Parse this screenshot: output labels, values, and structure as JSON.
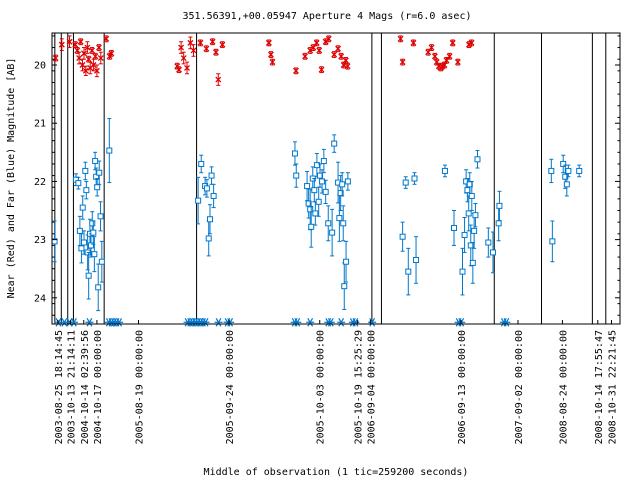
{
  "chart_data": {
    "type": "scatter",
    "title": "351.56391,+00.05947   Aperture 4 Mags (r=6.0 asec)",
    "xlabel": "Middle of observation (1 tic=259200 seconds)",
    "ylabel": "Near (Red) and Far (Blue) Magnitude [AB]",
    "ylim": [
      24.45,
      19.45
    ],
    "xlim": [
      0,
      220
    ],
    "y_ticks": [
      "20",
      "21",
      "22",
      "23",
      "24"
    ],
    "y_tick_values": [
      20,
      21,
      22,
      23,
      24
    ],
    "grid": false,
    "legend": "none",
    "colors": {
      "near": "#dd0000",
      "far": "#0077cc",
      "frame": "#000000"
    },
    "x_tick_labels": [
      {
        "label": "2003-08-25 18:14:45",
        "x": 2.3
      },
      {
        "label": "2003-10-13 21:14:11",
        "x": 7.2
      },
      {
        "label": "2004-10-14 02:39:56",
        "x": 12.3
      },
      {
        "label": "2004-10-17 00:00:00",
        "x": 17.4
      },
      {
        "label": "2005-08-19 00:00:00",
        "x": 33.5
      },
      {
        "label": "2005-09-24 00:00:00",
        "x": 68.6
      },
      {
        "label": "2005-10-03 00:00:00",
        "x": 103.7
      },
      {
        "label": "2005-10-19 15:25:29",
        "x": 118.4
      },
      {
        "label": "2006-09-04 00:00:00",
        "x": 123.3
      },
      {
        "label": "2006-09-13 00:00:00",
        "x": 158.4
      },
      {
        "label": "2007-09-02 00:00:00",
        "x": 180.5
      },
      {
        "label": "2008-08-24 00:00:00",
        "x": 197.7
      },
      {
        "label": "2008-10-14 17:55:47",
        "x": 211.4
      },
      {
        "label": "2008-10-31 22:21:45",
        "x": 216.7
      }
    ],
    "separators": [
      1.1,
      3.6,
      6.1,
      8.3,
      20.2,
      56.0,
      123.9,
      127.6,
      171.3,
      189.6,
      209.3,
      214.5
    ],
    "series": [
      {
        "name": "Near",
        "marker": "x",
        "points": [
          {
            "x": 1.4,
            "y": 19.88,
            "err": 0.05
          },
          {
            "x": 3.8,
            "y": 19.65,
            "err": 0.1
          },
          {
            "x": 6.8,
            "y": 19.6,
            "err": 0.1
          },
          {
            "x": 9.0,
            "y": 19.65,
            "err": 0.05
          },
          {
            "x": 9.8,
            "y": 19.75,
            "err": 0.05
          },
          {
            "x": 10.5,
            "y": 19.88,
            "err": 0.1
          },
          {
            "x": 11.1,
            "y": 19.6,
            "err": 0.05
          },
          {
            "x": 11.8,
            "y": 20.0,
            "err": 0.1
          },
          {
            "x": 12.4,
            "y": 19.8,
            "err": 0.1
          },
          {
            "x": 13.1,
            "y": 20.1,
            "err": 0.08
          },
          {
            "x": 13.7,
            "y": 19.7,
            "err": 0.1
          },
          {
            "x": 14.2,
            "y": 19.9,
            "err": 0.05
          },
          {
            "x": 14.8,
            "y": 20.05,
            "err": 0.1
          },
          {
            "x": 15.5,
            "y": 19.75,
            "err": 0.05
          },
          {
            "x": 16.1,
            "y": 20.0,
            "err": 0.1
          },
          {
            "x": 16.8,
            "y": 19.85,
            "err": 0.05
          },
          {
            "x": 17.4,
            "y": 20.1,
            "err": 0.1
          },
          {
            "x": 18.2,
            "y": 19.7,
            "err": 0.05
          },
          {
            "x": 18.9,
            "y": 19.88,
            "err": 0.1
          },
          {
            "x": 21.0,
            "y": 19.55,
            "err": 0.05
          },
          {
            "x": 22.3,
            "y": 19.85,
            "err": 0.05
          },
          {
            "x": 23.0,
            "y": 19.8,
            "err": 0.05
          },
          {
            "x": 48.5,
            "y": 20.02,
            "err": 0.05
          },
          {
            "x": 49.2,
            "y": 20.08,
            "err": 0.05
          },
          {
            "x": 50.0,
            "y": 19.7,
            "err": 0.1
          },
          {
            "x": 51.0,
            "y": 19.88,
            "err": 0.1
          },
          {
            "x": 52.3,
            "y": 20.05,
            "err": 0.1
          },
          {
            "x": 53.6,
            "y": 19.62,
            "err": 0.1
          },
          {
            "x": 54.8,
            "y": 19.75,
            "err": 0.1
          },
          {
            "x": 57.5,
            "y": 19.62,
            "err": 0.05
          },
          {
            "x": 59.8,
            "y": 19.72,
            "err": 0.05
          },
          {
            "x": 62.2,
            "y": 19.6,
            "err": 0.05
          },
          {
            "x": 63.5,
            "y": 19.78,
            "err": 0.05
          },
          {
            "x": 64.4,
            "y": 20.25,
            "err": 0.1
          },
          {
            "x": 66.0,
            "y": 19.65,
            "err": 0.05
          },
          {
            "x": 84.0,
            "y": 19.62,
            "err": 0.05
          },
          {
            "x": 84.8,
            "y": 19.82,
            "err": 0.05
          },
          {
            "x": 85.4,
            "y": 19.95,
            "err": 0.05
          },
          {
            "x": 94.5,
            "y": 20.1,
            "err": 0.05
          },
          {
            "x": 98.0,
            "y": 19.85,
            "err": 0.05
          },
          {
            "x": 100.0,
            "y": 19.75,
            "err": 0.05
          },
          {
            "x": 101.2,
            "y": 19.7,
            "err": 0.05
          },
          {
            "x": 102.5,
            "y": 19.62,
            "err": 0.05
          },
          {
            "x": 103.5,
            "y": 19.75,
            "err": 0.05
          },
          {
            "x": 104.4,
            "y": 20.08,
            "err": 0.05
          },
          {
            "x": 106.0,
            "y": 19.6,
            "err": 0.05
          },
          {
            "x": 107.2,
            "y": 19.55,
            "err": 0.05
          },
          {
            "x": 109.3,
            "y": 19.82,
            "err": 0.05
          },
          {
            "x": 110.8,
            "y": 19.72,
            "err": 0.05
          },
          {
            "x": 112.0,
            "y": 19.85,
            "err": 0.05
          },
          {
            "x": 113.0,
            "y": 20.0,
            "err": 0.05
          },
          {
            "x": 113.8,
            "y": 19.92,
            "err": 0.05
          },
          {
            "x": 114.5,
            "y": 20.02,
            "err": 0.05
          },
          {
            "x": 135.0,
            "y": 19.55,
            "err": 0.05
          },
          {
            "x": 135.8,
            "y": 19.95,
            "err": 0.05
          },
          {
            "x": 140.0,
            "y": 19.62,
            "err": 0.05
          },
          {
            "x": 145.7,
            "y": 19.78,
            "err": 0.05
          },
          {
            "x": 147.0,
            "y": 19.7,
            "err": 0.05
          },
          {
            "x": 148.3,
            "y": 19.85,
            "err": 0.05
          },
          {
            "x": 149.0,
            "y": 19.95,
            "err": 0.05
          },
          {
            "x": 149.8,
            "y": 20.02,
            "err": 0.05
          },
          {
            "x": 150.6,
            "y": 20.05,
            "err": 0.05
          },
          {
            "x": 151.2,
            "y": 20.02,
            "err": 0.05
          },
          {
            "x": 152.0,
            "y": 20.0,
            "err": 0.05
          },
          {
            "x": 152.8,
            "y": 19.92,
            "err": 0.05
          },
          {
            "x": 154.0,
            "y": 19.85,
            "err": 0.05
          },
          {
            "x": 155.2,
            "y": 19.62,
            "err": 0.05
          },
          {
            "x": 157.2,
            "y": 19.95,
            "err": 0.05
          },
          {
            "x": 161.5,
            "y": 19.65,
            "err": 0.05
          },
          {
            "x": 162.5,
            "y": 19.62,
            "err": 0.05
          }
        ]
      },
      {
        "name": "Far",
        "marker": "square",
        "points": [
          {
            "x": 1.0,
            "y": 23.03,
            "err": 0.35
          },
          {
            "x": 9.3,
            "y": 21.97,
            "err": 0.1
          },
          {
            "x": 10.2,
            "y": 22.03,
            "err": 0.1
          },
          {
            "x": 10.8,
            "y": 22.85,
            "err": 0.25
          },
          {
            "x": 11.4,
            "y": 23.15,
            "err": 0.25
          },
          {
            "x": 11.9,
            "y": 22.45,
            "err": 0.2
          },
          {
            "x": 12.4,
            "y": 23.05,
            "err": 0.2
          },
          {
            "x": 12.9,
            "y": 21.82,
            "err": 0.15
          },
          {
            "x": 13.3,
            "y": 22.15,
            "err": 0.15
          },
          {
            "x": 13.8,
            "y": 23.22,
            "err": 0.3
          },
          {
            "x": 14.2,
            "y": 23.62,
            "err": 0.4
          },
          {
            "x": 14.7,
            "y": 22.9,
            "err": 0.25
          },
          {
            "x": 15.1,
            "y": 23.1,
            "err": 0.2
          },
          {
            "x": 15.6,
            "y": 22.72,
            "err": 0.2
          },
          {
            "x": 16.0,
            "y": 22.88,
            "err": 0.2
          },
          {
            "x": 16.4,
            "y": 23.25,
            "err": 0.3
          },
          {
            "x": 16.7,
            "y": 21.65,
            "err": 0.15
          },
          {
            "x": 17.1,
            "y": 21.92,
            "err": 0.15
          },
          {
            "x": 17.5,
            "y": 22.1,
            "err": 0.15
          },
          {
            "x": 17.9,
            "y": 23.82,
            "err": 0.4
          },
          {
            "x": 18.3,
            "y": 21.85,
            "err": 0.2
          },
          {
            "x": 18.8,
            "y": 22.6,
            "err": 0.25
          },
          {
            "x": 19.3,
            "y": 23.38,
            "err": 0.35
          },
          {
            "x": 22.2,
            "y": 21.47,
            "err": 0.55
          },
          {
            "x": 56.6,
            "y": 22.33,
            "err": 0.4
          },
          {
            "x": 57.8,
            "y": 21.7,
            "err": 0.15
          },
          {
            "x": 59.3,
            "y": 22.08,
            "err": 0.15
          },
          {
            "x": 60.0,
            "y": 22.12,
            "err": 0.15
          },
          {
            "x": 60.7,
            "y": 22.98,
            "err": 0.3
          },
          {
            "x": 61.2,
            "y": 22.65,
            "err": 0.25
          },
          {
            "x": 61.8,
            "y": 21.9,
            "err": 0.15
          },
          {
            "x": 62.6,
            "y": 22.25,
            "err": 0.2
          },
          {
            "x": 94.1,
            "y": 21.52,
            "err": 0.2
          },
          {
            "x": 94.6,
            "y": 21.9,
            "err": 0.2
          },
          {
            "x": 98.8,
            "y": 22.08,
            "err": 0.25
          },
          {
            "x": 99.4,
            "y": 22.38,
            "err": 0.25
          },
          {
            "x": 100.0,
            "y": 22.48,
            "err": 0.35
          },
          {
            "x": 100.4,
            "y": 22.78,
            "err": 0.35
          },
          {
            "x": 101.0,
            "y": 21.95,
            "err": 0.2
          },
          {
            "x": 101.6,
            "y": 22.15,
            "err": 0.2
          },
          {
            "x": 102.0,
            "y": 22.55,
            "err": 0.2
          },
          {
            "x": 102.6,
            "y": 21.72,
            "err": 0.2
          },
          {
            "x": 103.3,
            "y": 22.35,
            "err": 0.25
          },
          {
            "x": 103.8,
            "y": 21.9,
            "err": 0.2
          },
          {
            "x": 104.6,
            "y": 22.0,
            "err": 0.2
          },
          {
            "x": 105.3,
            "y": 21.65,
            "err": 0.2
          },
          {
            "x": 106.0,
            "y": 22.18,
            "err": 0.2
          },
          {
            "x": 107.0,
            "y": 22.72,
            "err": 0.3
          },
          {
            "x": 108.5,
            "y": 22.88,
            "err": 0.4
          },
          {
            "x": 109.3,
            "y": 21.35,
            "err": 0.15
          },
          {
            "x": 110.8,
            "y": 22.02,
            "err": 0.35
          },
          {
            "x": 111.3,
            "y": 22.63,
            "err": 0.4
          },
          {
            "x": 111.8,
            "y": 22.2,
            "err": 0.3
          },
          {
            "x": 112.4,
            "y": 22.05,
            "err": 0.2
          },
          {
            "x": 112.8,
            "y": 22.72,
            "err": 0.3
          },
          {
            "x": 113.2,
            "y": 23.8,
            "err": 0.4
          },
          {
            "x": 113.9,
            "y": 23.38,
            "err": 0.35
          },
          {
            "x": 114.6,
            "y": 22.0,
            "err": 0.15
          },
          {
            "x": 135.8,
            "y": 22.95,
            "err": 0.25
          },
          {
            "x": 137.0,
            "y": 22.02,
            "err": 0.1
          },
          {
            "x": 138.0,
            "y": 23.55,
            "err": 0.4
          },
          {
            "x": 140.4,
            "y": 21.95,
            "err": 0.1
          },
          {
            "x": 141.0,
            "y": 23.35,
            "err": 0.4
          },
          {
            "x": 152.2,
            "y": 21.82,
            "err": 0.1
          },
          {
            "x": 155.7,
            "y": 22.8,
            "err": 0.3
          },
          {
            "x": 159.0,
            "y": 23.55,
            "err": 0.4
          },
          {
            "x": 159.8,
            "y": 22.92,
            "err": 0.3
          },
          {
            "x": 160.4,
            "y": 22.0,
            "err": 0.2
          },
          {
            "x": 160.9,
            "y": 22.15,
            "err": 0.2
          },
          {
            "x": 161.4,
            "y": 22.55,
            "err": 0.3
          },
          {
            "x": 161.8,
            "y": 22.05,
            "err": 0.2
          },
          {
            "x": 162.2,
            "y": 23.1,
            "err": 0.35
          },
          {
            "x": 162.6,
            "y": 22.25,
            "err": 0.25
          },
          {
            "x": 163.0,
            "y": 23.4,
            "err": 0.35
          },
          {
            "x": 163.5,
            "y": 22.85,
            "err": 0.3
          },
          {
            "x": 164.0,
            "y": 22.58,
            "err": 0.2
          },
          {
            "x": 164.8,
            "y": 21.62,
            "err": 0.15
          },
          {
            "x": 169.0,
            "y": 23.05,
            "err": 0.25
          },
          {
            "x": 170.8,
            "y": 23.22,
            "err": 0.35
          },
          {
            "x": 173.0,
            "y": 22.72,
            "err": 0.3
          },
          {
            "x": 173.3,
            "y": 22.42,
            "err": 0.25
          },
          {
            "x": 193.4,
            "y": 21.82,
            "err": 0.2
          },
          {
            "x": 193.8,
            "y": 23.03,
            "err": 0.35
          },
          {
            "x": 198.0,
            "y": 21.7,
            "err": 0.15
          },
          {
            "x": 198.8,
            "y": 21.92,
            "err": 0.2
          },
          {
            "x": 199.4,
            "y": 22.05,
            "err": 0.2
          },
          {
            "x": 200.0,
            "y": 21.82,
            "err": 0.1
          },
          {
            "x": 204.2,
            "y": 21.82,
            "err": 0.1
          }
        ]
      },
      {
        "name": "Observations",
        "marker": "asterisk",
        "y": 24.42,
        "x": [
          2.5,
          4.8,
          6.8,
          8.5,
          14.5,
          22.0,
          23.0,
          24.0,
          25.0,
          26.0,
          52.5,
          53.5,
          54.5,
          55.5,
          56.5,
          57.5,
          58.5,
          59.5,
          64.5,
          68.0,
          69.0,
          94.0,
          95.0,
          100.0,
          107.0,
          108.0,
          112.0,
          116.5,
          117.5,
          124.0,
          157.5,
          158.5,
          175.0,
          176.0
        ]
      }
    ]
  }
}
